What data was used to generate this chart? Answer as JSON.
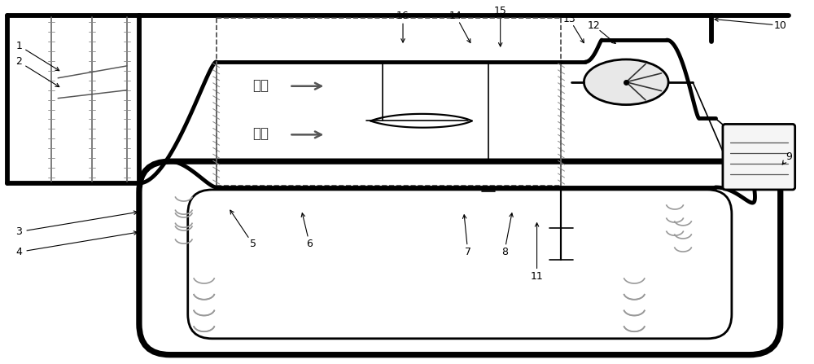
{
  "bg_color": "#ffffff",
  "line_color": "#000000",
  "fig_width": 10.0,
  "fig_height": 4.47,
  "lw_thick": 3.5,
  "lw_med": 2.0,
  "lw_thin": 1.2
}
